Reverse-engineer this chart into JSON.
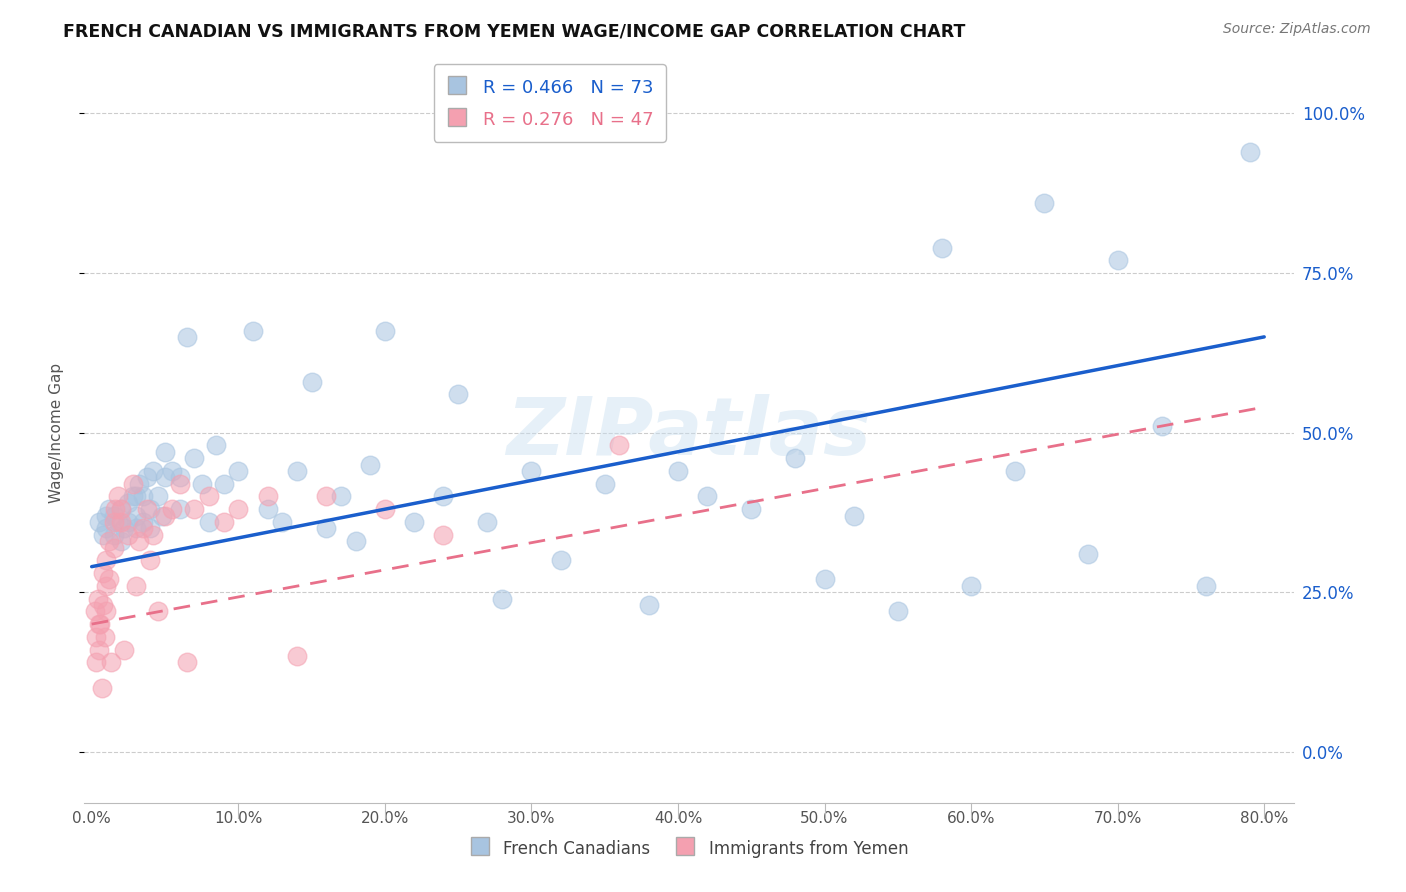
{
  "title": "FRENCH CANADIAN VS IMMIGRANTS FROM YEMEN WAGE/INCOME GAP CORRELATION CHART",
  "source": "Source: ZipAtlas.com",
  "ylabel": "Wage/Income Gap",
  "xlim": [
    -0.005,
    0.82
  ],
  "ylim": [
    -0.08,
    1.08
  ],
  "yticks": [
    0.0,
    0.25,
    0.5,
    0.75,
    1.0
  ],
  "xticks": [
    0.0,
    0.1,
    0.2,
    0.3,
    0.4,
    0.5,
    0.6,
    0.7,
    0.8
  ],
  "blue_R": 0.466,
  "blue_N": 73,
  "pink_R": 0.276,
  "pink_N": 47,
  "blue_color": "#A8C4E0",
  "pink_color": "#F4A0B0",
  "trend_blue": "#1A5ECC",
  "trend_pink": "#E8708A",
  "legend_label_blue": "French Canadians",
  "legend_label_pink": "Immigrants from Yemen",
  "watermark": "ZIPatlas",
  "blue_x": [
    0.005,
    0.008,
    0.01,
    0.01,
    0.012,
    0.015,
    0.015,
    0.018,
    0.02,
    0.02,
    0.022,
    0.025,
    0.025,
    0.028,
    0.03,
    0.03,
    0.03,
    0.032,
    0.035,
    0.035,
    0.038,
    0.04,
    0.04,
    0.042,
    0.045,
    0.048,
    0.05,
    0.05,
    0.055,
    0.06,
    0.06,
    0.065,
    0.07,
    0.075,
    0.08,
    0.085,
    0.09,
    0.1,
    0.11,
    0.12,
    0.13,
    0.14,
    0.15,
    0.16,
    0.17,
    0.18,
    0.19,
    0.2,
    0.22,
    0.24,
    0.25,
    0.27,
    0.28,
    0.3,
    0.32,
    0.35,
    0.38,
    0.4,
    0.42,
    0.45,
    0.48,
    0.5,
    0.52,
    0.55,
    0.58,
    0.6,
    0.63,
    0.65,
    0.68,
    0.7,
    0.73,
    0.76,
    0.79
  ],
  "blue_y": [
    0.36,
    0.34,
    0.35,
    0.37,
    0.38,
    0.34,
    0.37,
    0.36,
    0.33,
    0.38,
    0.35,
    0.36,
    0.39,
    0.4,
    0.35,
    0.37,
    0.4,
    0.42,
    0.36,
    0.4,
    0.43,
    0.35,
    0.38,
    0.44,
    0.4,
    0.37,
    0.43,
    0.47,
    0.44,
    0.38,
    0.43,
    0.65,
    0.46,
    0.42,
    0.36,
    0.48,
    0.42,
    0.44,
    0.66,
    0.38,
    0.36,
    0.44,
    0.58,
    0.35,
    0.4,
    0.33,
    0.45,
    0.66,
    0.36,
    0.4,
    0.56,
    0.36,
    0.24,
    0.44,
    0.3,
    0.42,
    0.23,
    0.44,
    0.4,
    0.38,
    0.46,
    0.27,
    0.37,
    0.22,
    0.79,
    0.26,
    0.44,
    0.86,
    0.31,
    0.77,
    0.51,
    0.26,
    0.94
  ],
  "pink_x": [
    0.002,
    0.003,
    0.003,
    0.004,
    0.005,
    0.005,
    0.006,
    0.007,
    0.008,
    0.008,
    0.009,
    0.01,
    0.01,
    0.01,
    0.012,
    0.012,
    0.013,
    0.015,
    0.015,
    0.016,
    0.018,
    0.02,
    0.02,
    0.022,
    0.025,
    0.028,
    0.03,
    0.032,
    0.035,
    0.038,
    0.04,
    0.042,
    0.045,
    0.05,
    0.055,
    0.06,
    0.065,
    0.07,
    0.08,
    0.09,
    0.1,
    0.12,
    0.14,
    0.16,
    0.2,
    0.24,
    0.36
  ],
  "pink_y": [
    0.22,
    0.18,
    0.14,
    0.24,
    0.2,
    0.16,
    0.2,
    0.1,
    0.28,
    0.23,
    0.18,
    0.3,
    0.26,
    0.22,
    0.33,
    0.27,
    0.14,
    0.36,
    0.32,
    0.38,
    0.4,
    0.36,
    0.38,
    0.16,
    0.34,
    0.42,
    0.26,
    0.33,
    0.35,
    0.38,
    0.3,
    0.34,
    0.22,
    0.37,
    0.38,
    0.42,
    0.14,
    0.38,
    0.4,
    0.36,
    0.38,
    0.4,
    0.15,
    0.4,
    0.38,
    0.34,
    0.48
  ],
  "blue_trend_x0": 0.0,
  "blue_trend_y0": 0.29,
  "blue_trend_x1": 0.8,
  "blue_trend_y1": 0.65,
  "pink_trend_x0": 0.0,
  "pink_trend_y0": 0.2,
  "pink_trend_x1": 0.8,
  "pink_trend_y1": 0.54
}
